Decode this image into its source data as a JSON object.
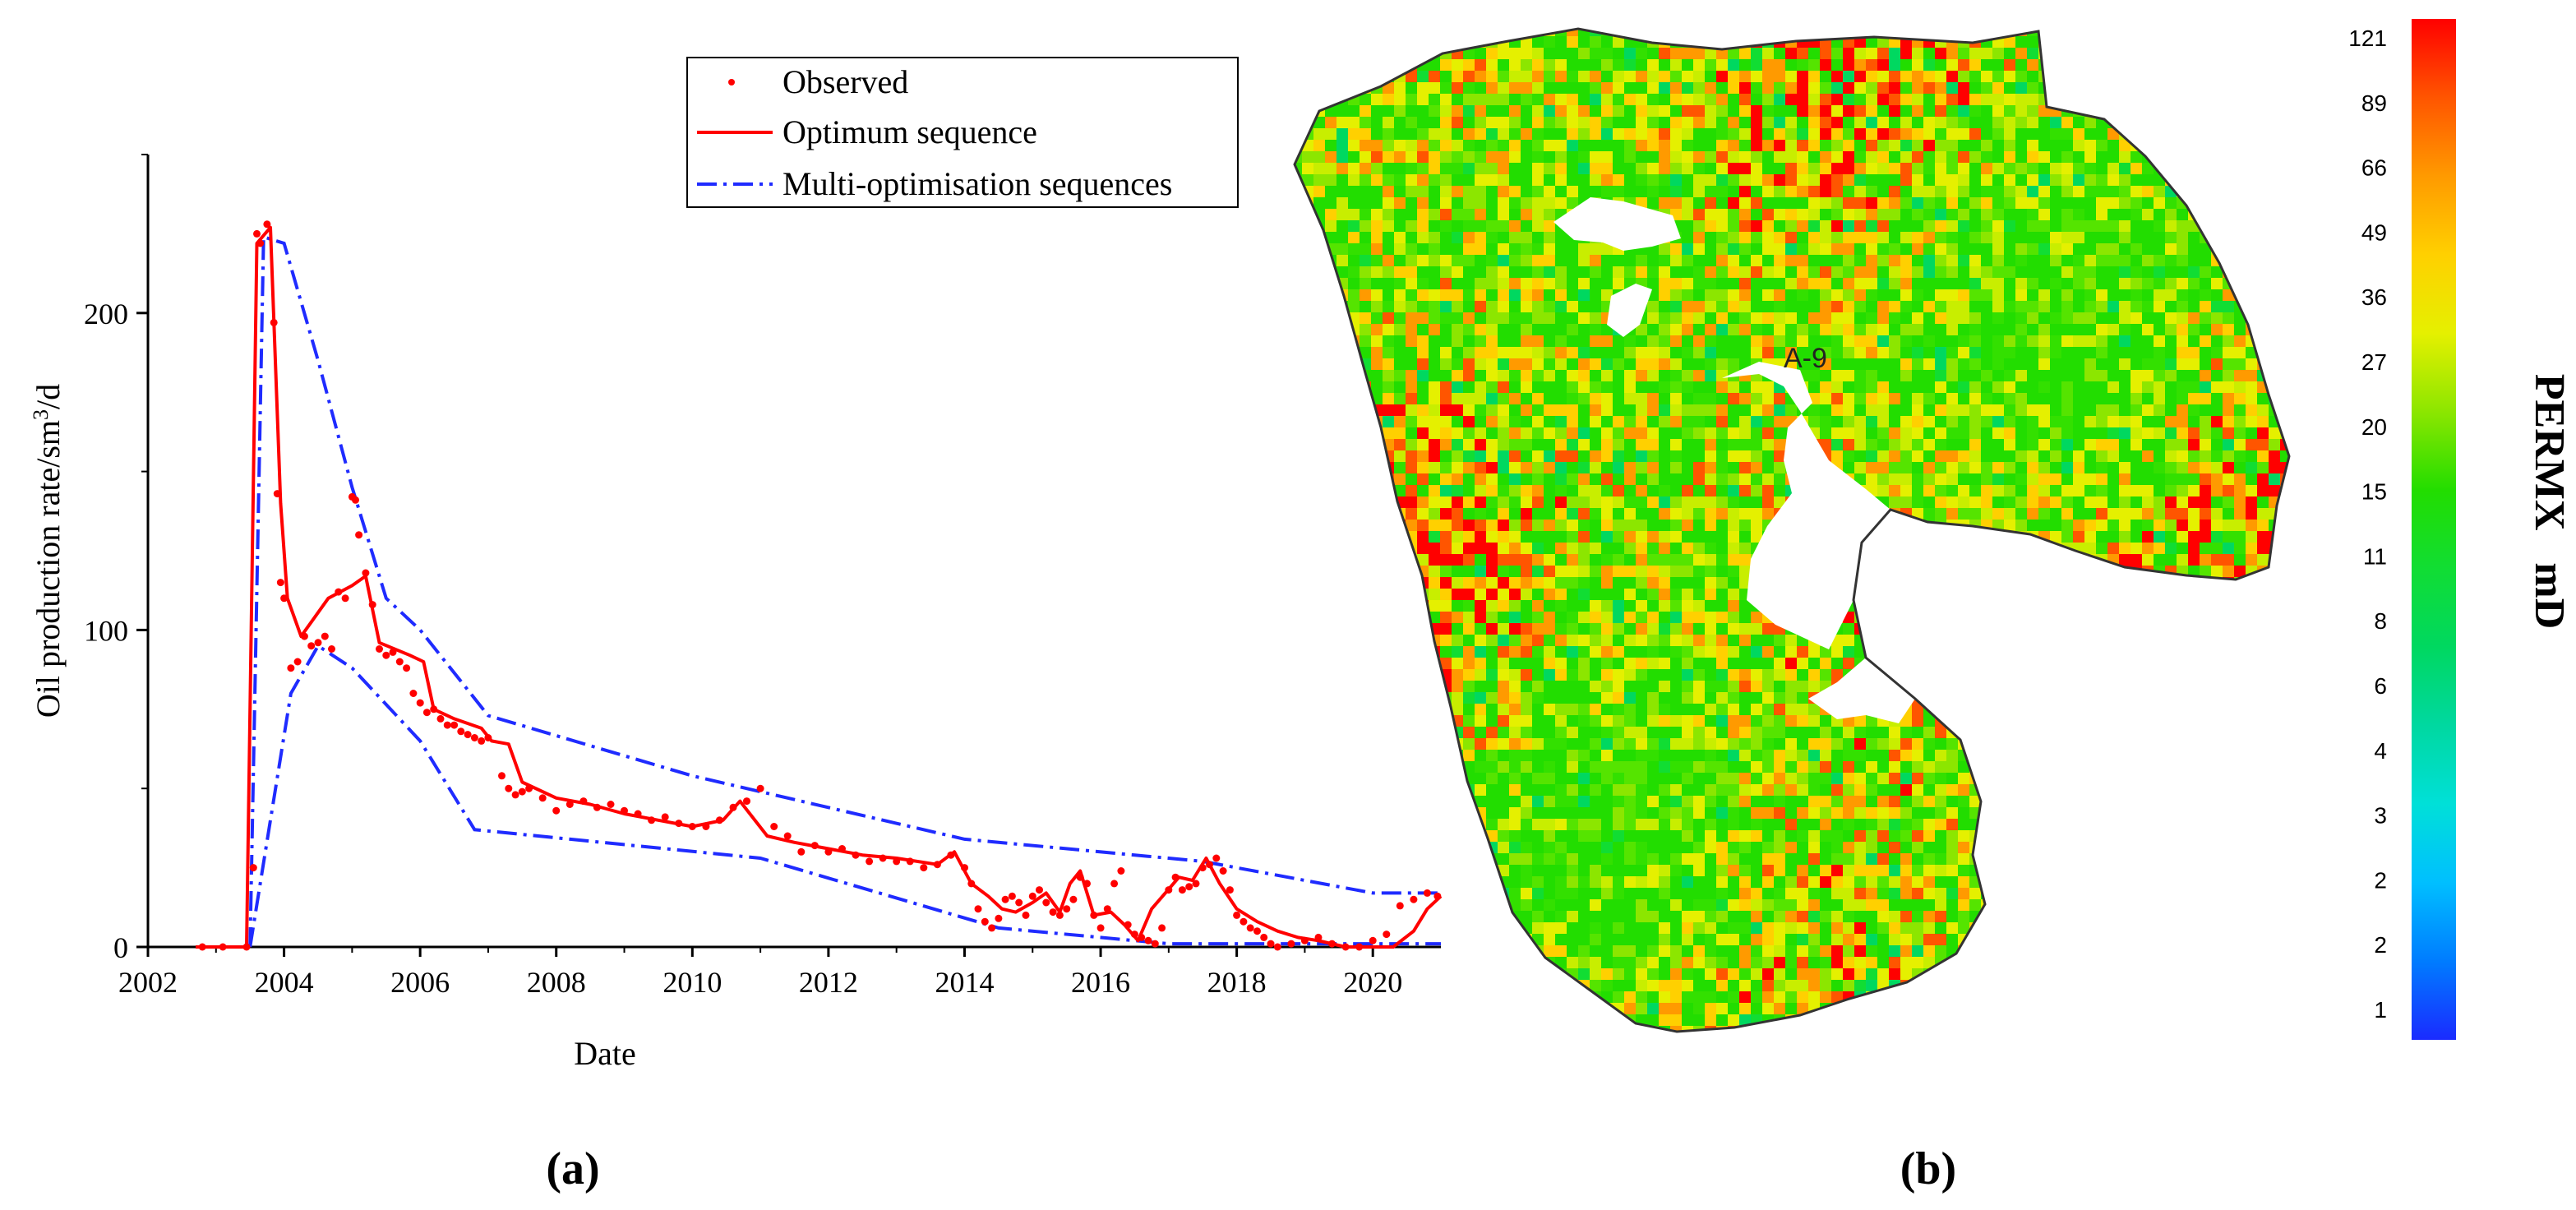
{
  "figure": {
    "panel_a_label": "(a)",
    "panel_b_label": "(b)"
  },
  "chart_data": [
    {
      "type": "line",
      "title": "",
      "xlabel": "Date",
      "ylabel": "Oil production rate/sm",
      "ylabel_superscript": "3",
      "ylabel_suffix": "/d",
      "xlim": [
        2002,
        2021
      ],
      "ylim": [
        0,
        250
      ],
      "xticks": [
        2002,
        2004,
        2006,
        2008,
        2010,
        2012,
        2014,
        2016,
        2018,
        2020
      ],
      "yticks": [
        0,
        100,
        200
      ],
      "legend_position": "top-right",
      "legend": [
        "Observed",
        "Optimum sequence",
        "Multi-optimisation sequences"
      ],
      "colors": {
        "observed": "#ff0000",
        "optimum": "#ff0000",
        "multi": "#1f2bff"
      },
      "series": [
        {
          "name": "Observed",
          "style": "points",
          "x": [
            2002.8,
            2003.1,
            2003.45,
            2003.55,
            2003.6,
            2003.65,
            2003.75,
            2003.85,
            2003.9,
            2003.95,
            2004.0,
            2004.1,
            2004.2,
            2004.3,
            2004.4,
            2004.5,
            2004.6,
            2004.7,
            2004.8,
            2004.9,
            2005.0,
            2005.05,
            2005.1,
            2005.2,
            2005.3,
            2005.4,
            2005.5,
            2005.6,
            2005.7,
            2005.8,
            2005.9,
            2006.0,
            2006.1,
            2006.2,
            2006.3,
            2006.4,
            2006.5,
            2006.6,
            2006.7,
            2006.8,
            2006.9,
            2007.0,
            2007.2,
            2007.3,
            2007.4,
            2007.5,
            2007.6,
            2007.8,
            2008.0,
            2008.2,
            2008.4,
            2008.6,
            2008.8,
            2009.0,
            2009.2,
            2009.4,
            2009.6,
            2009.8,
            2010.0,
            2010.2,
            2010.4,
            2010.6,
            2010.8,
            2011.0,
            2011.2,
            2011.4,
            2011.6,
            2011.8,
            2012.0,
            2012.2,
            2012.4,
            2012.6,
            2012.8,
            2013.0,
            2013.2,
            2013.4,
            2013.6,
            2013.8,
            2014.0,
            2014.1,
            2014.2,
            2014.3,
            2014.4,
            2014.5,
            2014.6,
            2014.7,
            2014.8,
            2014.9,
            2015.0,
            2015.1,
            2015.2,
            2015.3,
            2015.4,
            2015.5,
            2015.6,
            2015.7,
            2015.8,
            2015.9,
            2016.0,
            2016.1,
            2016.2,
            2016.3,
            2016.4,
            2016.5,
            2016.6,
            2016.7,
            2016.8,
            2016.9,
            2017.0,
            2017.1,
            2017.2,
            2017.3,
            2017.4,
            2017.5,
            2017.6,
            2017.7,
            2017.8,
            2017.9,
            2018.0,
            2018.1,
            2018.2,
            2018.3,
            2018.4,
            2018.5,
            2018.6,
            2018.8,
            2019.0,
            2019.2,
            2019.4,
            2019.6,
            2019.8,
            2020.0,
            2020.2,
            2020.4,
            2020.6,
            2020.8,
            2020.95
          ],
          "y": [
            0,
            0,
            0,
            25,
            225,
            222,
            228,
            197,
            143,
            115,
            110,
            88,
            90,
            98,
            95,
            96,
            98,
            94,
            112,
            110,
            142,
            141,
            130,
            118,
            108,
            94,
            92,
            93,
            90,
            88,
            80,
            77,
            74,
            75,
            72,
            70,
            70,
            68,
            67,
            66,
            65,
            66,
            54,
            50,
            48,
            49,
            50,
            47,
            43,
            45,
            46,
            44,
            45,
            43,
            42,
            40,
            41,
            39,
            38,
            38,
            40,
            44,
            46,
            50,
            38,
            35,
            30,
            32,
            30,
            31,
            29,
            27,
            28,
            27,
            27,
            25,
            26,
            29,
            25,
            20,
            12,
            8,
            6,
            9,
            15,
            16,
            14,
            10,
            16,
            18,
            14,
            11,
            10,
            12,
            15,
            22,
            20,
            10,
            6,
            12,
            20,
            24,
            7,
            4,
            3,
            2,
            1,
            6,
            18,
            22,
            18,
            19,
            20,
            25,
            26,
            28,
            24,
            18,
            10,
            8,
            6,
            5,
            3,
            1,
            0,
            1,
            2,
            3,
            1,
            0,
            0,
            2,
            4,
            13,
            15,
            17,
            16
          ],
          "color": "#ff0000"
        },
        {
          "name": "Optimum sequence",
          "style": "solid",
          "x": [
            2002.7,
            2003.45,
            2003.6,
            2003.8,
            2003.95,
            2004.05,
            2004.25,
            2004.65,
            2005.0,
            2005.2,
            2005.4,
            2005.85,
            2006.05,
            2006.2,
            2006.5,
            2006.9,
            2007.05,
            2007.3,
            2007.5,
            2008.0,
            2008.5,
            2009.0,
            2009.5,
            2010.0,
            2010.45,
            2010.7,
            2011.1,
            2011.5,
            2012.0,
            2012.5,
            2013.0,
            2013.6,
            2013.85,
            2014.1,
            2014.35,
            2014.55,
            2014.75,
            2015.0,
            2015.2,
            2015.4,
            2015.55,
            2015.7,
            2015.9,
            2016.15,
            2016.35,
            2016.55,
            2016.75,
            2016.95,
            2017.15,
            2017.35,
            2017.55,
            2017.75,
            2018.0,
            2018.3,
            2018.6,
            2018.9,
            2019.2,
            2019.6,
            2020.3,
            2020.6,
            2020.8,
            2021.0
          ],
          "y": [
            0,
            0,
            222,
            227,
            140,
            110,
            98,
            110,
            114,
            117,
            96,
            92,
            90,
            75,
            72,
            69,
            65,
            64,
            52,
            47,
            45,
            42,
            40,
            38,
            40,
            46,
            35,
            33,
            31,
            29,
            28,
            26,
            30,
            20,
            16,
            12,
            11,
            14,
            17,
            11,
            20,
            24,
            10,
            11,
            7,
            2,
            12,
            17,
            22,
            21,
            28,
            20,
            12,
            8,
            5,
            3,
            2,
            0,
            0,
            5,
            12,
            16
          ],
          "color": "#ff0000"
        },
        {
          "name": "Multi-optimisation sequences",
          "style": "dashdot",
          "lines": [
            {
              "x": [
                2003.5,
                2003.7,
                2004.0,
                2004.5,
                2005.0,
                2005.5,
                2006.0,
                2007.0,
                2010.0,
                2014.0,
                2017.5,
                2020.0,
                2021.0
              ],
              "y": [
                0,
                224,
                222,
                185,
                145,
                110,
                100,
                73,
                54,
                34,
                27,
                17,
                17
              ]
            },
            {
              "x": [
                2003.5,
                2003.8,
                2004.1,
                2004.5,
                2005.0,
                2006.0,
                2006.8,
                2011.0,
                2014.5,
                2017.0,
                2021.0
              ],
              "y": [
                0,
                40,
                80,
                95,
                88,
                65,
                37,
                28,
                6,
                1,
                1
              ]
            }
          ],
          "color": "#1f2bff"
        }
      ]
    },
    {
      "type": "heatmap",
      "title": "",
      "colorbar_label": "PERMX   mD",
      "colorbar_ticks": [
        "121",
        "89",
        "66",
        "49",
        "36",
        "27",
        "20",
        "15",
        "11",
        "8",
        "6",
        "4",
        "3",
        "2",
        "2",
        "1"
      ],
      "colorbar_colors": [
        "#ff0000",
        "#ff5500",
        "#ff9a00",
        "#ffd000",
        "#e5f000",
        "#8ce600",
        "#22dd00",
        "#11dd33",
        "#00d860",
        "#00d8a0",
        "#00e0d8",
        "#00bfff",
        "#007cff",
        "#1a2bff"
      ],
      "annotations": [
        {
          "text": "A-9"
        }
      ]
    }
  ]
}
